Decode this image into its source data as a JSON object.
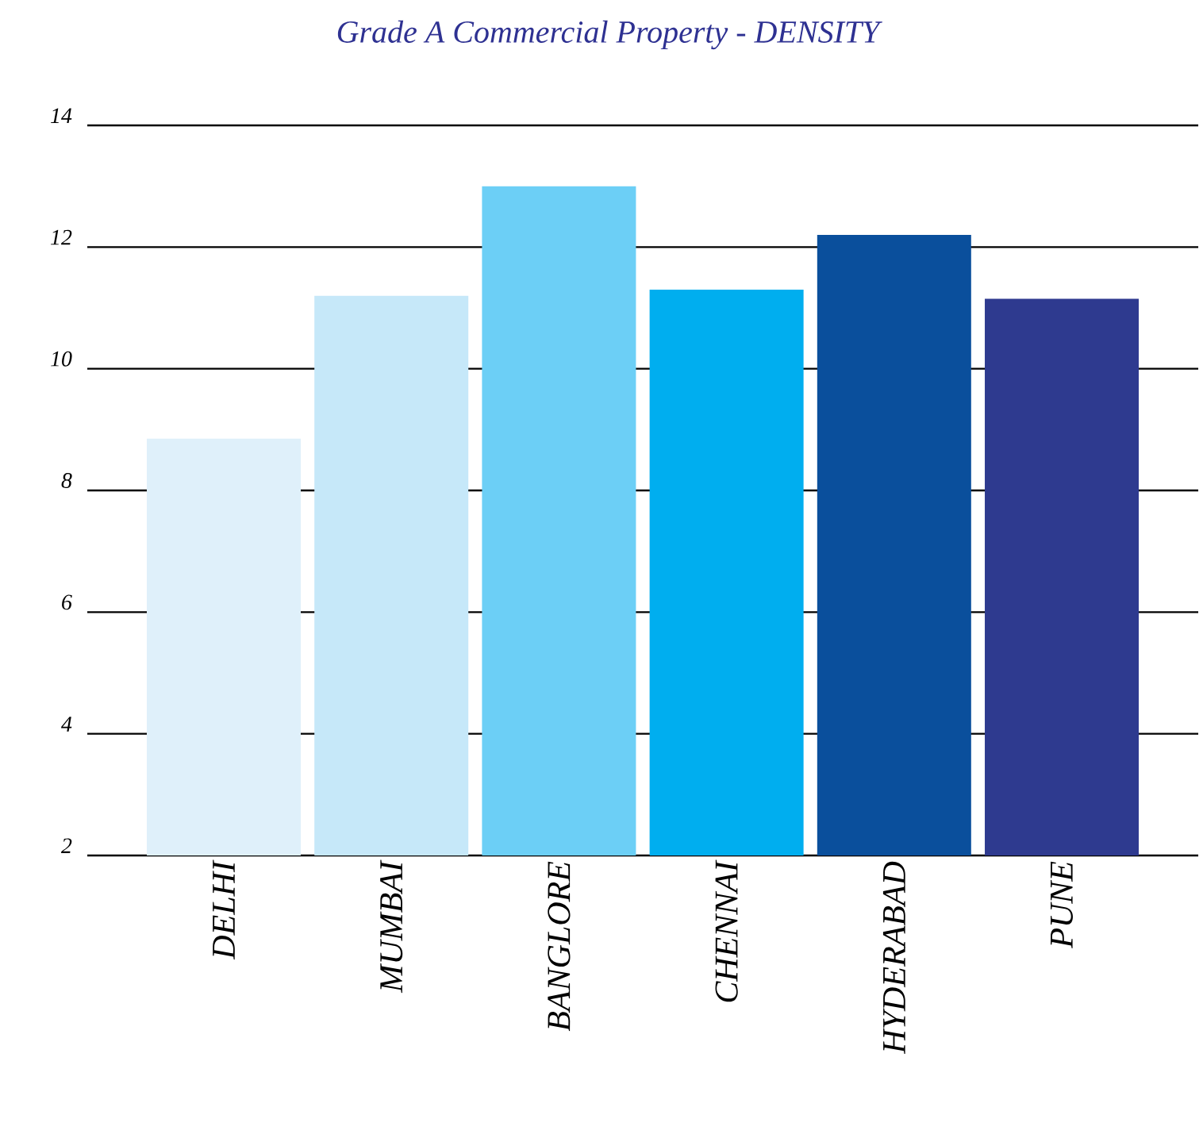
{
  "chart_data": {
    "type": "bar",
    "title": "Grade A Commercial Property - DENSITY",
    "categories": [
      "DELHI",
      "MUMBAI",
      "BANGLORE",
      "CHENNAI",
      "HYDERABAD",
      "PUNE"
    ],
    "values": [
      8.85,
      11.2,
      13.0,
      11.3,
      12.2,
      11.15
    ],
    "colors": [
      "#dff0fa",
      "#c6e8f9",
      "#6ccff6",
      "#00aeef",
      "#0a4f9c",
      "#2e3a8f"
    ],
    "ylim": [
      2,
      14
    ],
    "yticks": [
      2,
      4,
      6,
      8,
      10,
      12,
      14
    ],
    "grid": "y"
  }
}
